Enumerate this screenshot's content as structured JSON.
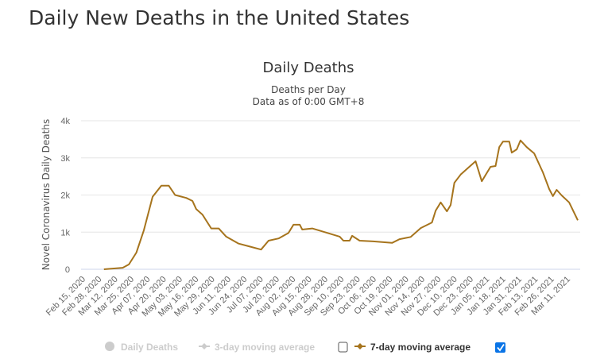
{
  "page": {
    "title": "Daily New Deaths in the United States"
  },
  "chart_data": {
    "type": "line",
    "title": "Daily Deaths",
    "subtitle_lines": [
      "Deaths per Day",
      "Data as of 0:00 GMT+8"
    ],
    "ylabel": "Novel Coronavirus Daily Deaths",
    "xlabel": "",
    "ylim": [
      0,
      4000
    ],
    "y_ticks": [
      0,
      1000,
      2000,
      3000,
      4000
    ],
    "y_tick_labels": [
      "0",
      "1k",
      "2k",
      "3k",
      "4k"
    ],
    "x_tick_labels": [
      "Feb 15, 2020",
      "Feb 28, 2020",
      "Mar 12, 2020",
      "Mar 25, 2020",
      "Apr 07, 2020",
      "Apr 20, 2020",
      "May 03, 2020",
      "May 16, 2020",
      "May 29, 2020",
      "Jun 11, 2020",
      "Jun 24, 2020",
      "Jul 07, 2020",
      "Jul 20, 2020",
      "Aug 02, 2020",
      "Aug 15, 2020",
      "Aug 28, 2020",
      "Sep 10, 2020",
      "Sep 23, 2020",
      "Oct 06, 2020",
      "Oct 19, 2020",
      "Nov 01, 2020",
      "Nov 14, 2020",
      "Nov 27, 2020",
      "Dec 10, 2020",
      "Dec 23, 2020",
      "Jan 05, 2021",
      "Jan 18, 2021",
      "Jan 31, 2021",
      "Feb 13, 2021",
      "Feb 26, 2021",
      "Mar 11, 2021"
    ],
    "grid": true,
    "legend_position": "bottom",
    "legend": [
      {
        "name": "Daily Deaths",
        "visible": false,
        "color": "#cccccc"
      },
      {
        "name": "3-day moving average",
        "visible": false,
        "color": "#cccccc"
      },
      {
        "name": "7-day moving average",
        "visible": true,
        "color": "#a6741d"
      }
    ],
    "series": [
      {
        "name": "7-day moving average",
        "color": "#a6741d",
        "x": [
          "2020-02-27",
          "2020-03-13",
          "2020-03-18",
          "2020-03-24",
          "2020-03-30",
          "2020-04-06",
          "2020-04-13",
          "2020-04-19",
          "2020-04-24",
          "2020-05-03",
          "2020-05-08",
          "2020-05-11",
          "2020-05-16",
          "2020-05-23",
          "2020-05-29",
          "2020-06-04",
          "2020-06-14",
          "2020-06-22",
          "2020-07-02",
          "2020-07-08",
          "2020-07-16",
          "2020-07-24",
          "2020-07-28",
          "2020-08-02",
          "2020-08-04",
          "2020-08-12",
          "2020-08-23",
          "2020-09-03",
          "2020-09-06",
          "2020-09-11",
          "2020-09-13",
          "2020-09-19",
          "2020-09-30",
          "2020-10-15",
          "2020-10-21",
          "2020-10-30",
          "2020-11-07",
          "2020-11-16",
          "2020-11-19",
          "2020-11-23",
          "2020-11-28",
          "2020-12-01",
          "2020-12-04",
          "2020-12-09",
          "2020-12-16",
          "2020-12-21",
          "2020-12-26",
          "2021-01-02",
          "2021-01-06",
          "2021-01-09",
          "2021-01-12",
          "2021-01-17",
          "2021-01-19",
          "2021-01-23",
          "2021-01-26",
          "2021-01-31",
          "2021-02-06",
          "2021-02-13",
          "2021-02-18",
          "2021-02-21",
          "2021-02-24",
          "2021-02-28",
          "2021-03-06",
          "2021-03-13"
        ],
        "values": [
          0,
          40,
          130,
          450,
          1050,
          1950,
          2250,
          2250,
          2000,
          1920,
          1840,
          1620,
          1470,
          1100,
          1100,
          880,
          690,
          620,
          530,
          770,
          830,
          980,
          1200,
          1200,
          1070,
          1100,
          990,
          880,
          770,
          770,
          900,
          770,
          750,
          710,
          810,
          870,
          1110,
          1260,
          1580,
          1800,
          1560,
          1730,
          2330,
          2550,
          2760,
          2910,
          2370,
          2760,
          2780,
          3290,
          3440,
          3440,
          3140,
          3230,
          3470,
          3290,
          3120,
          2610,
          2160,
          1970,
          2140,
          1990,
          1800,
          1320
        ]
      }
    ]
  }
}
